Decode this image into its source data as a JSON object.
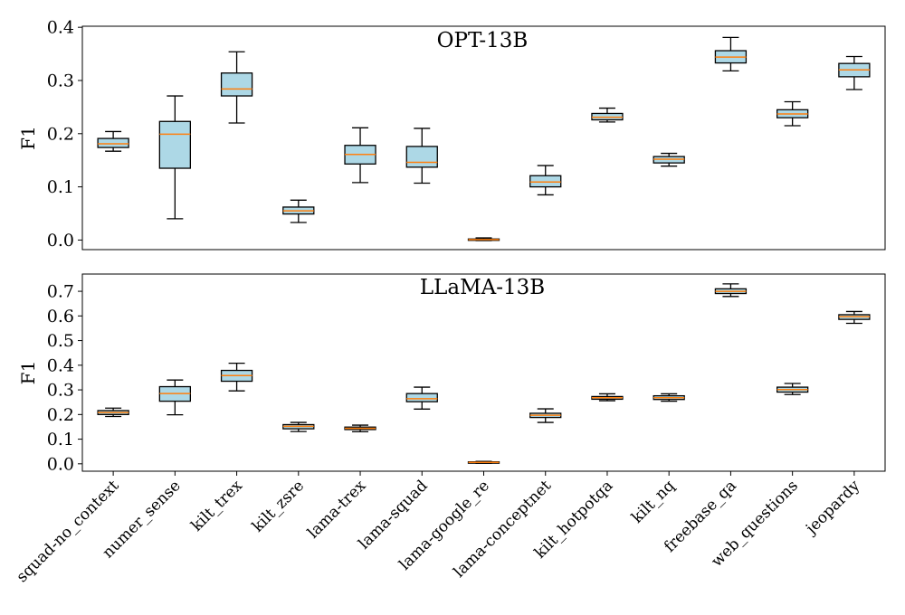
{
  "chart_data": {
    "type": "boxplot",
    "categories": [
      "squad-no_context",
      "numer_sense",
      "kilt_trex",
      "kilt_zsre",
      "lama-trex",
      "lama-squad",
      "lama-google_re",
      "lama-conceptnet",
      "kilt_hotpotqa",
      "kilt_nq",
      "freebase_qa",
      "web_questions",
      "jeopardy"
    ],
    "colors": {
      "box_fill": "#add8e6",
      "median": "#ff7f0e",
      "stroke": "#000000"
    },
    "panels": [
      {
        "title": "OPT-13B",
        "ylabel": "F1",
        "ylim": [
          -0.018,
          0.402
        ],
        "yticks": [
          0.0,
          0.1,
          0.2,
          0.3,
          0.4
        ],
        "ytick_labels": [
          "0.0",
          "0.1",
          "0.2",
          "0.3",
          "0.4"
        ],
        "boxes": [
          {
            "whislo": 0.167,
            "q1": 0.174,
            "med": 0.181,
            "q3": 0.191,
            "whishi": 0.204
          },
          {
            "whislo": 0.04,
            "q1": 0.135,
            "med": 0.199,
            "q3": 0.223,
            "whishi": 0.271
          },
          {
            "whislo": 0.22,
            "q1": 0.271,
            "med": 0.284,
            "q3": 0.314,
            "whishi": 0.354
          },
          {
            "whislo": 0.033,
            "q1": 0.049,
            "med": 0.055,
            "q3": 0.062,
            "whishi": 0.075
          },
          {
            "whislo": 0.108,
            "q1": 0.143,
            "med": 0.161,
            "q3": 0.178,
            "whishi": 0.211
          },
          {
            "whislo": 0.107,
            "q1": 0.137,
            "med": 0.146,
            "q3": 0.176,
            "whishi": 0.21
          },
          {
            "whislo": -0.001,
            "q1": 0.0,
            "med": 0.001,
            "q3": 0.002,
            "whishi": 0.004
          },
          {
            "whislo": 0.085,
            "q1": 0.1,
            "med": 0.109,
            "q3": 0.121,
            "whishi": 0.14
          },
          {
            "whislo": 0.222,
            "q1": 0.226,
            "med": 0.231,
            "q3": 0.238,
            "whishi": 0.248
          },
          {
            "whislo": 0.139,
            "q1": 0.145,
            "med": 0.152,
            "q3": 0.157,
            "whishi": 0.163
          },
          {
            "whislo": 0.318,
            "q1": 0.333,
            "med": 0.344,
            "q3": 0.356,
            "whishi": 0.381
          },
          {
            "whislo": 0.215,
            "q1": 0.23,
            "med": 0.237,
            "q3": 0.245,
            "whishi": 0.26
          },
          {
            "whislo": 0.283,
            "q1": 0.307,
            "med": 0.32,
            "q3": 0.332,
            "whishi": 0.345
          }
        ]
      },
      {
        "title": "LLaMA-13B",
        "ylabel": "F1",
        "ylim": [
          -0.03,
          0.77
        ],
        "yticks": [
          0.0,
          0.1,
          0.2,
          0.3,
          0.4,
          0.5,
          0.6,
          0.7
        ],
        "ytick_labels": [
          "0.0",
          "0.1",
          "0.2",
          "0.3",
          "0.4",
          "0.5",
          "0.6",
          "0.7"
        ],
        "boxes": [
          {
            "whislo": 0.192,
            "q1": 0.2,
            "med": 0.208,
            "q3": 0.216,
            "whishi": 0.226
          },
          {
            "whislo": 0.199,
            "q1": 0.254,
            "med": 0.285,
            "q3": 0.313,
            "whishi": 0.34
          },
          {
            "whislo": 0.296,
            "q1": 0.335,
            "med": 0.358,
            "q3": 0.379,
            "whishi": 0.408
          },
          {
            "whislo": 0.131,
            "q1": 0.142,
            "med": 0.152,
            "q3": 0.159,
            "whishi": 0.168
          },
          {
            "whislo": 0.13,
            "q1": 0.139,
            "med": 0.144,
            "q3": 0.149,
            "whishi": 0.157
          },
          {
            "whislo": 0.222,
            "q1": 0.252,
            "med": 0.264,
            "q3": 0.285,
            "whishi": 0.311
          },
          {
            "whislo": 0.002,
            "q1": 0.004,
            "med": 0.006,
            "q3": 0.008,
            "whishi": 0.01
          },
          {
            "whislo": 0.168,
            "q1": 0.188,
            "med": 0.197,
            "q3": 0.205,
            "whishi": 0.223
          },
          {
            "whislo": 0.256,
            "q1": 0.262,
            "med": 0.268,
            "q3": 0.273,
            "whishi": 0.284
          },
          {
            "whislo": 0.254,
            "q1": 0.261,
            "med": 0.268,
            "q3": 0.276,
            "whishi": 0.284
          },
          {
            "whislo": 0.679,
            "q1": 0.691,
            "med": 0.7,
            "q3": 0.71,
            "whishi": 0.73
          },
          {
            "whislo": 0.281,
            "q1": 0.291,
            "med": 0.301,
            "q3": 0.311,
            "whishi": 0.326
          },
          {
            "whislo": 0.57,
            "q1": 0.586,
            "med": 0.597,
            "q3": 0.605,
            "whishi": 0.618
          }
        ]
      }
    ]
  }
}
